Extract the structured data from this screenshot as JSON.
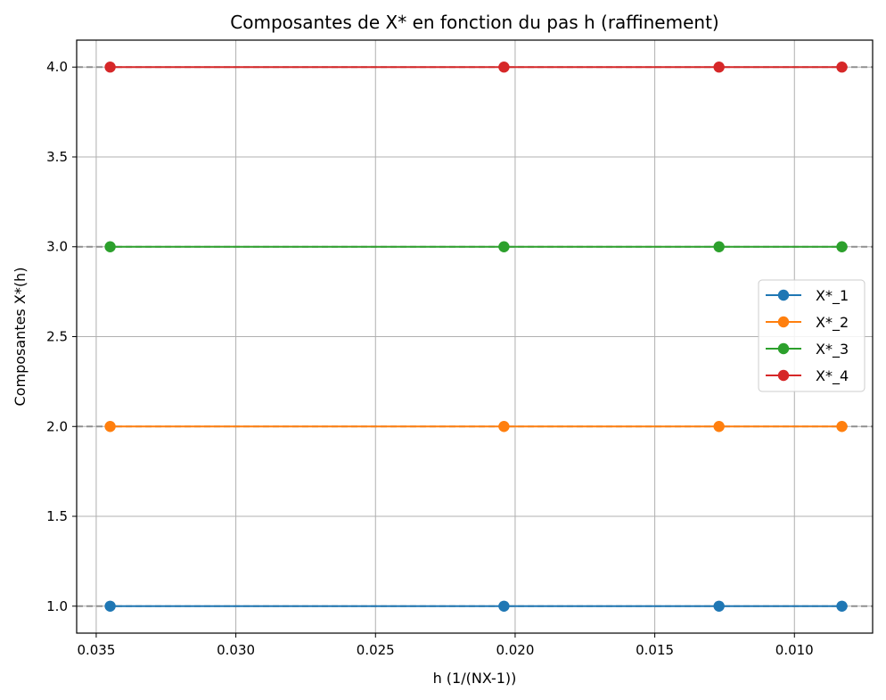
{
  "chart_data": {
    "type": "line",
    "title": "Composantes de X* en fonction du pas h (raffinement)",
    "xlabel": "h (1/(NX-1))",
    "ylabel": "Composantes X*(h)",
    "x_axis_inverted": true,
    "xlim": [
      0.0357,
      0.0072
    ],
    "ylim": [
      0.85,
      4.15
    ],
    "xticks": [
      0.035,
      0.03,
      0.025,
      0.02,
      0.015,
      0.01
    ],
    "xtick_labels": [
      "0.035",
      "0.030",
      "0.025",
      "0.020",
      "0.015",
      "0.010"
    ],
    "yticks": [
      1.0,
      1.5,
      2.0,
      2.5,
      3.0,
      3.5,
      4.0
    ],
    "ytick_labels": [
      "1.0",
      "1.5",
      "2.0",
      "2.5",
      "3.0",
      "3.5",
      "4.0"
    ],
    "grid": true,
    "legend_position": "center-right",
    "x": [
      0.0345,
      0.0204,
      0.0127,
      0.0083
    ],
    "series": [
      {
        "name": "X*_1",
        "color": "#1f77b4",
        "values": [
          1.0,
          1.0,
          1.0,
          1.0
        ]
      },
      {
        "name": "X*_2",
        "color": "#ff7f0e",
        "values": [
          2.0,
          2.0,
          2.0,
          2.0
        ]
      },
      {
        "name": "X*_3",
        "color": "#2ca02c",
        "values": [
          3.0,
          3.0,
          3.0,
          3.0
        ]
      },
      {
        "name": "X*_4",
        "color": "#d62728",
        "values": [
          4.0,
          4.0,
          4.0,
          4.0
        ]
      }
    ],
    "reference_lines": [
      1.0,
      2.0,
      3.0,
      4.0
    ],
    "reference_line_color": "#808080"
  }
}
